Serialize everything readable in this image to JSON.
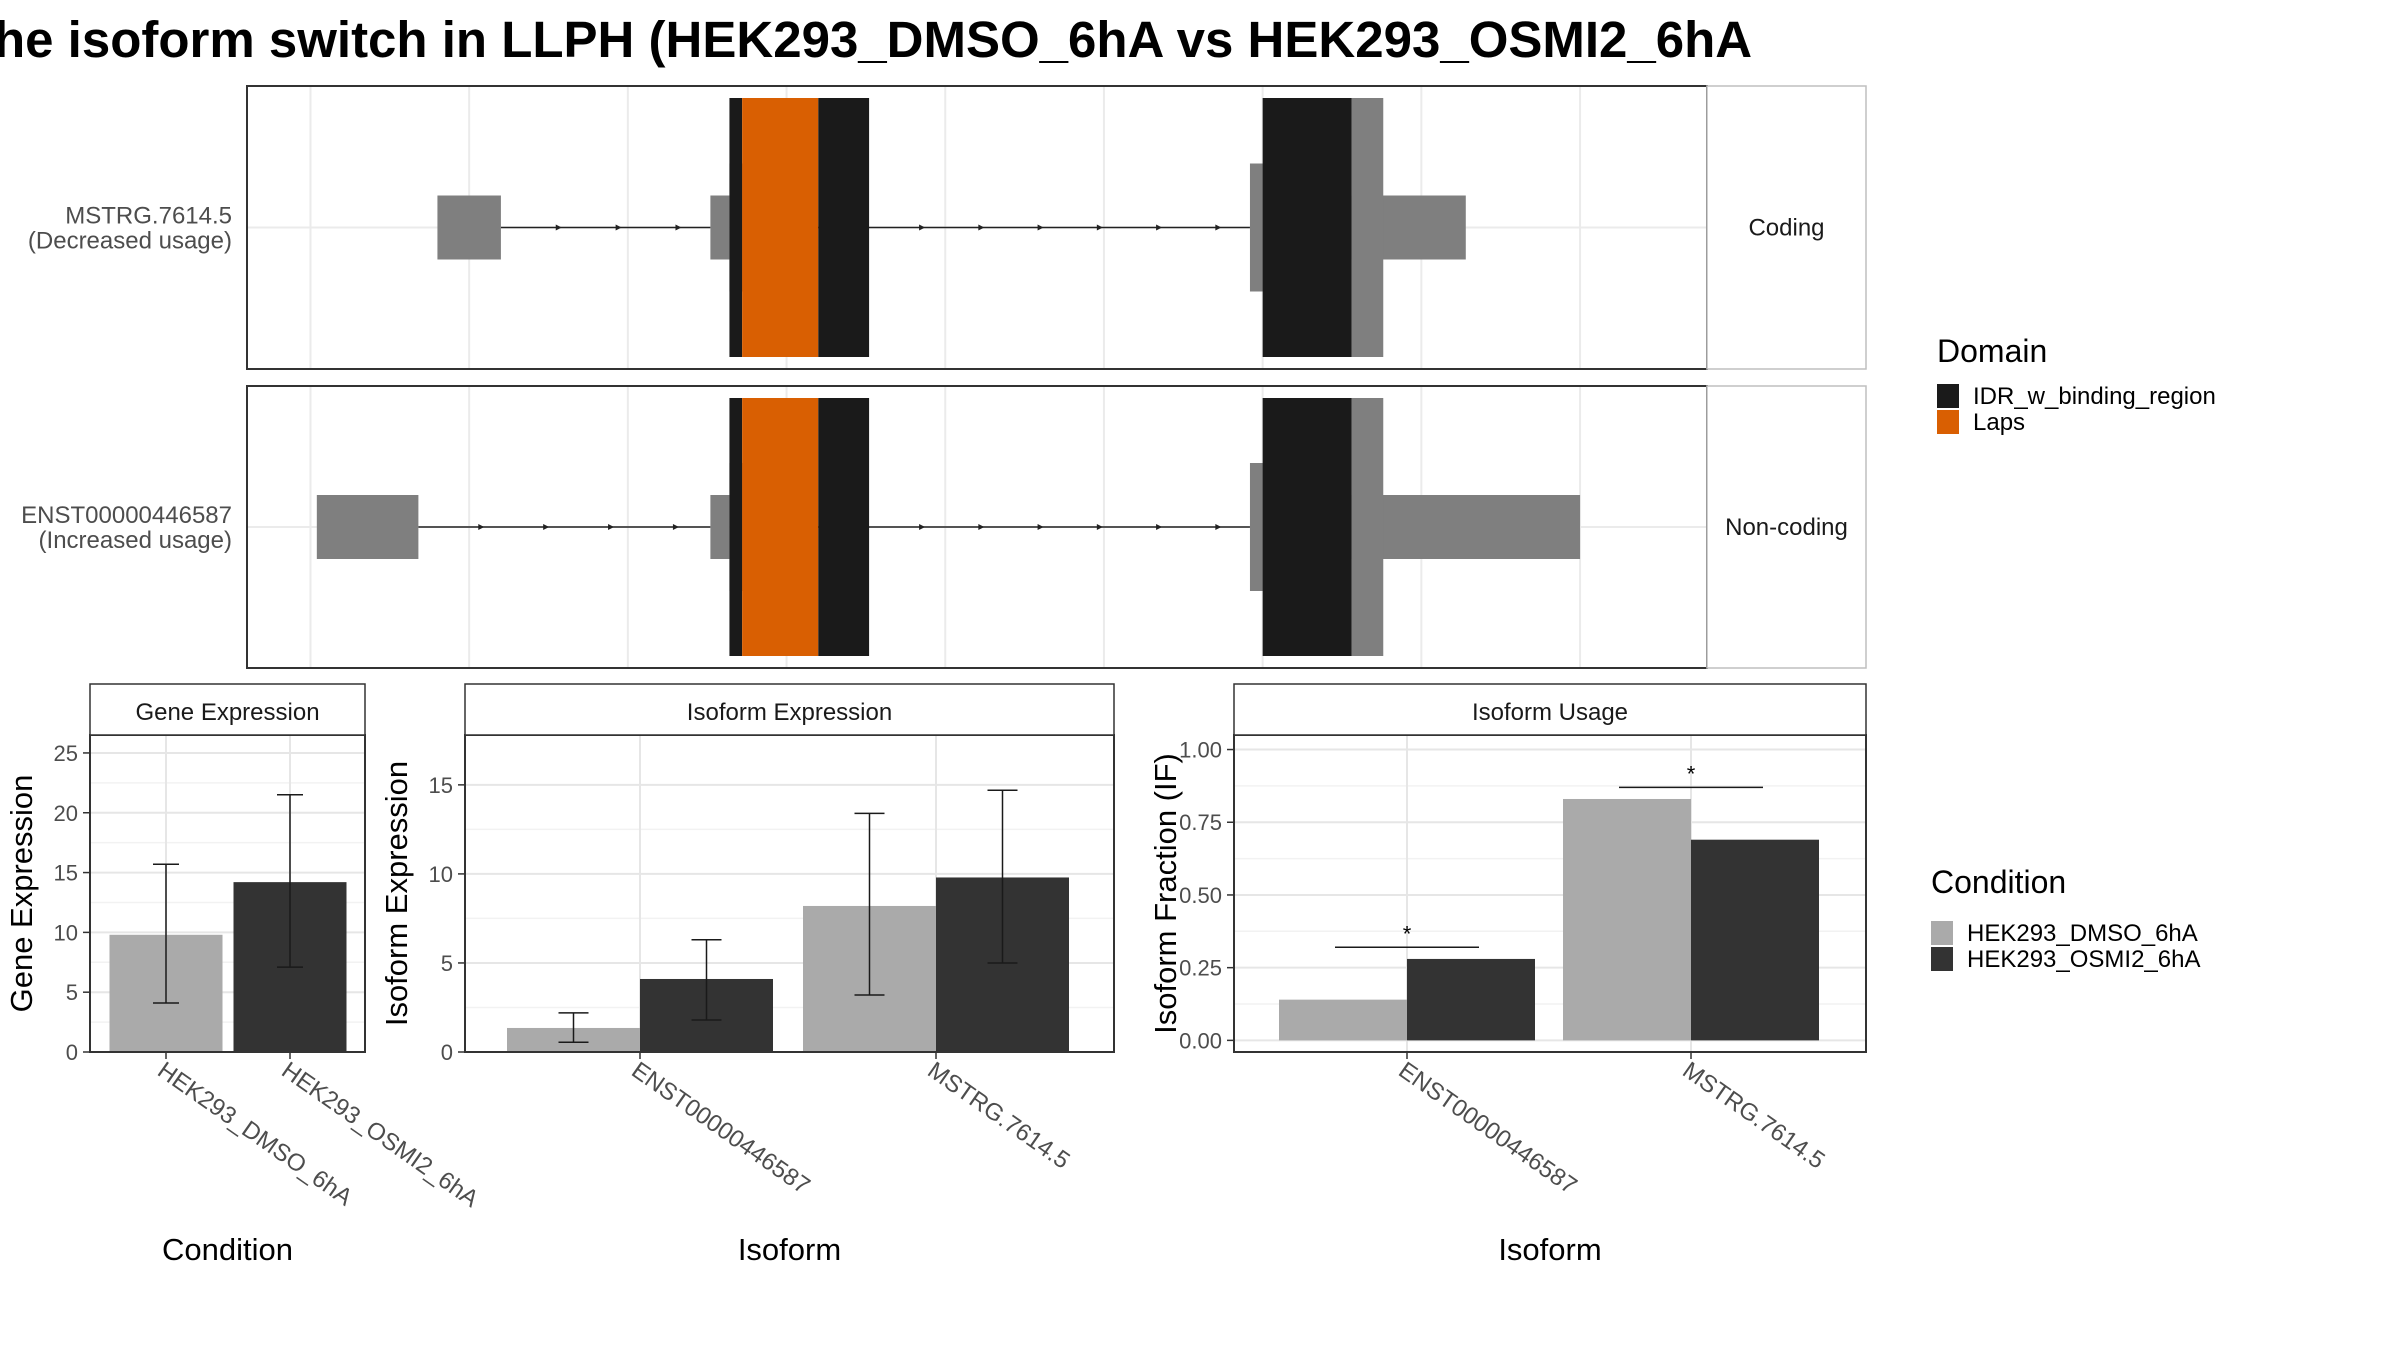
{
  "title": "he isoform switch in LLPH (HEK293_DMSO_6hA vs HEK293_OSMI2_6hA",
  "colors": {
    "idr": "#1a1a1a",
    "laps": "#d95f02",
    "exon": "#7f7f7f",
    "dmso": "#aaaaaa",
    "osmi": "#333333"
  },
  "structure": {
    "isoforms": [
      {
        "name": "MSTRG.7614.5",
        "usage": "(Decreased usage)",
        "coding_label": "Coding",
        "exons": [
          {
            "start": 2.0,
            "end": 3.0,
            "kind": "utr"
          },
          {
            "start": 6.3,
            "end": 6.6,
            "kind": "utr"
          },
          {
            "start": 6.6,
            "end": 7.8,
            "kind": "cds"
          },
          {
            "start": 14.8,
            "end": 16.2,
            "kind": "cds"
          },
          {
            "start": 16.2,
            "end": 18.2,
            "kind": "utr"
          }
        ],
        "domains": [
          {
            "name": "IDR_w_binding_region",
            "start": 6.6,
            "end": 6.8
          },
          {
            "name": "Laps",
            "start": 6.8,
            "end": 8.0
          },
          {
            "name": "IDR_w_binding_region",
            "start": 8.0,
            "end": 8.8
          },
          {
            "name": "IDR_w_binding_region",
            "start": 15.0,
            "end": 16.4
          },
          {
            "name": "exon",
            "start": 16.4,
            "end": 16.9
          }
        ]
      },
      {
        "name": "ENST00000446587",
        "usage": "(Increased usage)",
        "coding_label": "Non-coding",
        "exons": [
          {
            "start": 0.1,
            "end": 1.7,
            "kind": "utr"
          },
          {
            "start": 6.3,
            "end": 6.6,
            "kind": "utr"
          },
          {
            "start": 6.6,
            "end": 7.8,
            "kind": "cds"
          },
          {
            "start": 14.8,
            "end": 16.2,
            "kind": "cds"
          },
          {
            "start": 16.2,
            "end": 20.0,
            "kind": "utr"
          }
        ],
        "domains": [
          {
            "name": "IDR_w_binding_region",
            "start": 6.6,
            "end": 6.8
          },
          {
            "name": "Laps",
            "start": 6.8,
            "end": 8.0
          },
          {
            "name": "IDR_w_binding_region",
            "start": 8.0,
            "end": 8.8
          },
          {
            "name": "IDR_w_binding_region",
            "start": 15.0,
            "end": 16.4
          },
          {
            "name": "exon",
            "start": 16.4,
            "end": 16.9
          }
        ]
      }
    ]
  },
  "legend_domain": {
    "title": "Domain",
    "entries": [
      {
        "label": "IDR_w_binding_region",
        "color": "#1a1a1a"
      },
      {
        "label": "Laps",
        "color": "#d95f02"
      }
    ]
  },
  "legend_condition": {
    "title": "Condition",
    "entries": [
      {
        "label": "HEK293_DMSO_6hA",
        "color": "#aaaaaa"
      },
      {
        "label": "HEK293_OSMI2_6hA",
        "color": "#333333"
      }
    ]
  },
  "chart_data": [
    {
      "type": "bar",
      "panel_title": "Gene Expression",
      "xlabel": "Condition",
      "ylabel": "Gene Expression",
      "ylim": [
        0,
        26.5
      ],
      "yticks": [
        0,
        5,
        10,
        15,
        20,
        25
      ],
      "ytick_labels": [
        "0",
        "5",
        "10",
        "15",
        "20",
        "25"
      ],
      "categories": [
        "HEK293_DMSO_6hA",
        "HEK293_OSMI2_6hA"
      ],
      "values": [
        9.8,
        14.2
      ],
      "err_low": [
        4.1,
        7.1
      ],
      "err_high": [
        15.7,
        21.5
      ]
    },
    {
      "type": "bar",
      "panel_title": "Isoform Expression",
      "xlabel": "Isoform",
      "ylabel": "Isoform Expression",
      "ylim": [
        0,
        17.8
      ],
      "yticks": [
        0,
        5,
        10,
        15
      ],
      "ytick_labels": [
        "0",
        "5",
        "10",
        "15"
      ],
      "categories": [
        "ENST00000446587",
        "MSTRG.7614.5"
      ],
      "series": [
        {
          "values": [
            1.35,
            8.2
          ],
          "err_low": [
            0.55,
            3.2
          ],
          "err_high": [
            2.2,
            13.4
          ]
        },
        {
          "values": [
            4.1,
            9.8
          ],
          "err_low": [
            1.8,
            5.0
          ],
          "err_high": [
            6.3,
            14.7
          ]
        }
      ]
    },
    {
      "type": "bar",
      "panel_title": "Isoform Usage",
      "xlabel": "Isoform",
      "ylabel": "Isoform Fraction (IF)",
      "ylim": [
        -0.04,
        1.05
      ],
      "yticks": [
        0,
        0.25,
        0.5,
        0.75,
        1.0
      ],
      "ytick_labels": [
        "0.00",
        "0.25",
        "0.50",
        "0.75",
        "1.00"
      ],
      "categories": [
        "ENST00000446587",
        "MSTRG.7614.5"
      ],
      "series": [
        {
          "values": [
            0.14,
            0.83
          ]
        },
        {
          "values": [
            0.28,
            0.69
          ]
        }
      ],
      "significance": [
        {
          "category": 0,
          "level": 0.32,
          "label": "*"
        },
        {
          "category": 1,
          "level": 0.87,
          "label": "*"
        }
      ]
    }
  ]
}
